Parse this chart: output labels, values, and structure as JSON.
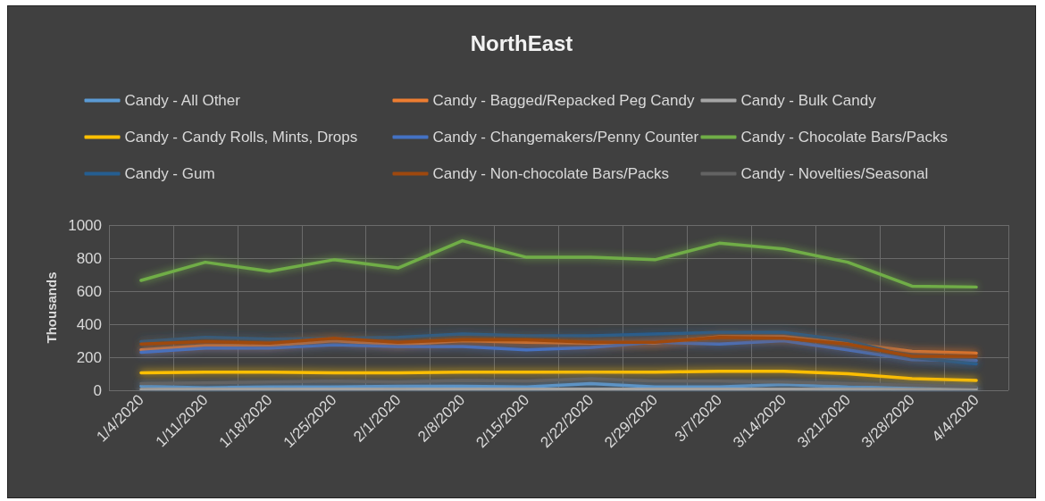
{
  "chart_data": {
    "type": "line",
    "title": "NorthEast",
    "ylabel": "Thousands",
    "categories": [
      "1/4/2020",
      "1/11/2020",
      "1/18/2020",
      "1/25/2020",
      "2/1/2020",
      "2/8/2020",
      "2/15/2020",
      "2/22/2020",
      "2/29/2020",
      "3/7/2020",
      "3/14/2020",
      "3/21/2020",
      "3/28/2020",
      "4/4/2020"
    ],
    "series": [
      {
        "name": "Candy - All Other",
        "color": "#5b9bd5",
        "values": [
          25,
          15,
          20,
          20,
          25,
          25,
          20,
          40,
          20,
          20,
          35,
          20,
          15,
          15
        ]
      },
      {
        "name": "Candy - Bagged/Repacked Peg Candy",
        "color": "#ed7d31",
        "values": [
          245,
          270,
          270,
          300,
          275,
          300,
          290,
          285,
          285,
          325,
          325,
          285,
          235,
          225
        ]
      },
      {
        "name": "Candy - Bulk Candy",
        "color": "#a5a5a5",
        "values": [
          5,
          10,
          10,
          10,
          10,
          10,
          10,
          10,
          10,
          10,
          10,
          10,
          5,
          5
        ]
      },
      {
        "name": "Candy - Candy Rolls, Mints, Drops",
        "color": "#ffc000",
        "values": [
          105,
          110,
          110,
          105,
          105,
          110,
          110,
          110,
          110,
          115,
          115,
          100,
          70,
          60
        ]
      },
      {
        "name": "Candy - Changemakers/Penny Counter",
        "color": "#4472c4",
        "values": [
          230,
          255,
          255,
          275,
          265,
          265,
          245,
          260,
          290,
          280,
          300,
          245,
          185,
          180
        ]
      },
      {
        "name": "Candy - Chocolate Bars/Packs",
        "color": "#70ad47",
        "values": [
          665,
          775,
          720,
          790,
          740,
          905,
          805,
          805,
          790,
          890,
          855,
          775,
          630,
          625
        ]
      },
      {
        "name": "Candy - Gum",
        "color": "#255e91",
        "values": [
          295,
          320,
          310,
          315,
          320,
          340,
          330,
          330,
          340,
          350,
          350,
          300,
          200,
          160
        ]
      },
      {
        "name": "Candy - Non-chocolate Bars/Packs",
        "color": "#9e480e",
        "values": [
          280,
          295,
          285,
          315,
          290,
          305,
          305,
          290,
          290,
          320,
          315,
          280,
          205,
          205
        ]
      },
      {
        "name": "Candy - Novelties/Seasonal",
        "color": "#636363",
        "values": [
          40,
          45,
          50,
          55,
          50,
          60,
          55,
          70,
          55,
          55,
          50,
          40,
          30,
          20
        ]
      }
    ],
    "ylim": [
      0,
      1000
    ],
    "yticks": [
      0,
      200,
      400,
      600,
      800,
      1000
    ],
    "grid": true,
    "legend": "top",
    "marker": "none",
    "line_style": "solid"
  }
}
